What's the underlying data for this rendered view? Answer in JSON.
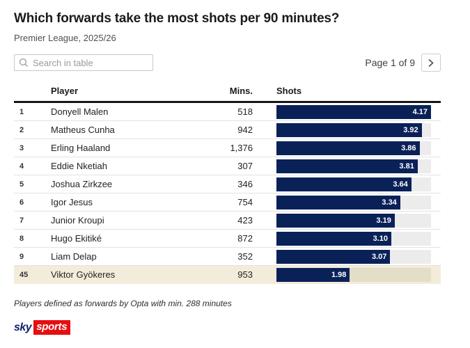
{
  "header": {
    "title": "Which forwards take the most shots per 90 minutes?",
    "subtitle": "Premier League, 2025/26"
  },
  "toolbar": {
    "search_placeholder": "Search in table",
    "page_label": "Page 1 of 9"
  },
  "table": {
    "columns": {
      "player": "Player",
      "mins": "Mins.",
      "shots": "Shots"
    },
    "max_shots": 4.17,
    "rows": [
      {
        "rank": "1",
        "player": "Donyell Malen",
        "mins": "518",
        "shots": 4.17,
        "highlight": false
      },
      {
        "rank": "2",
        "player": "Matheus Cunha",
        "mins": "942",
        "shots": 3.92,
        "highlight": false
      },
      {
        "rank": "3",
        "player": "Erling Haaland",
        "mins": "1,376",
        "shots": 3.86,
        "highlight": false
      },
      {
        "rank": "4",
        "player": "Eddie Nketiah",
        "mins": "307",
        "shots": 3.81,
        "highlight": false
      },
      {
        "rank": "5",
        "player": "Joshua Zirkzee",
        "mins": "346",
        "shots": 3.64,
        "highlight": false
      },
      {
        "rank": "6",
        "player": "Igor Jesus",
        "mins": "754",
        "shots": 3.34,
        "highlight": false
      },
      {
        "rank": "7",
        "player": "Junior Kroupi",
        "mins": "423",
        "shots": 3.19,
        "highlight": false
      },
      {
        "rank": "8",
        "player": "Hugo Ekitiké",
        "mins": "872",
        "shots": 3.1,
        "highlight": false
      },
      {
        "rank": "9",
        "player": "Liam Delap",
        "mins": "352",
        "shots": 3.07,
        "highlight": false
      },
      {
        "rank": "45",
        "player": "Viktor Gyökeres",
        "mins": "953",
        "shots": 1.98,
        "highlight": true
      }
    ]
  },
  "footnote": "Players defined as forwards by Opta with min. 288 minutes",
  "branding": {
    "sky": "sky",
    "sports": "sports"
  },
  "colors": {
    "bar": "#0a2158",
    "bar_track": "#ececec",
    "highlight_row": "#f3ecdb",
    "highlight_track": "#e4ddc7",
    "logo_red": "#e60e10",
    "logo_navy": "#12226e",
    "header_rule": "#161616"
  },
  "chart_data": {
    "type": "bar",
    "orientation": "horizontal",
    "title": "Which forwards take the most shots per 90 minutes?",
    "subtitle": "Premier League, 2025/26",
    "categories": [
      "Donyell Malen",
      "Matheus Cunha",
      "Erling Haaland",
      "Eddie Nketiah",
      "Joshua Zirkzee",
      "Igor Jesus",
      "Junior Kroupi",
      "Hugo Ekitiké",
      "Liam Delap",
      "Viktor Gyökeres"
    ],
    "ranks": [
      1,
      2,
      3,
      4,
      5,
      6,
      7,
      8,
      9,
      45
    ],
    "series": [
      {
        "name": "Mins.",
        "values": [
          518,
          942,
          1376,
          307,
          346,
          754,
          423,
          872,
          352,
          953
        ]
      },
      {
        "name": "Shots",
        "values": [
          4.17,
          3.92,
          3.86,
          3.81,
          3.64,
          3.34,
          3.19,
          3.1,
          3.07,
          1.98
        ]
      }
    ],
    "xlabel": "Shots",
    "xlim": [
      0,
      4.17
    ],
    "grid": false,
    "legend_position": "none",
    "annotations": [
      "Players defined as forwards by Opta with min. 288 minutes"
    ]
  }
}
